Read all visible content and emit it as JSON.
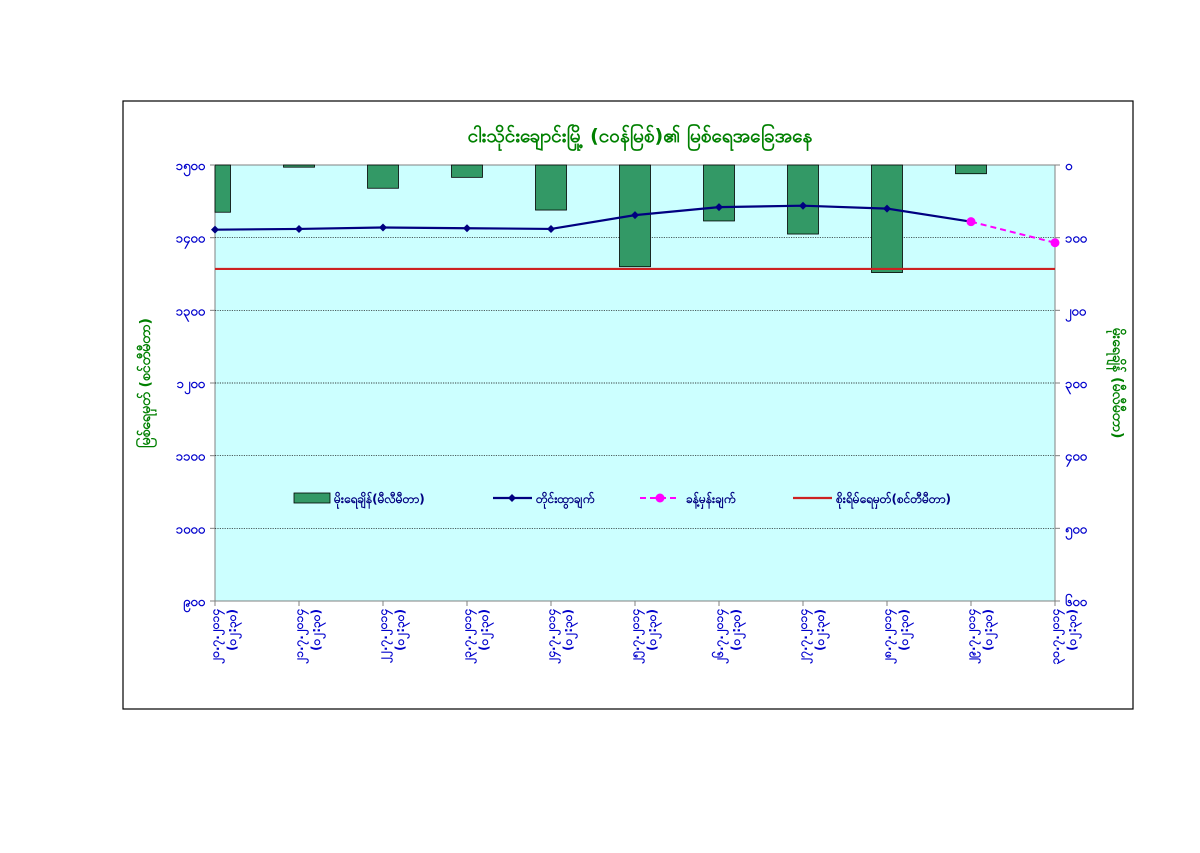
{
  "chart_data": {
    "type": "bar+line",
    "title": "ငါးသိုင်းချောင်းမြို့ (ငဝန်မြစ်)၏ မြစ်ရေအခြေအနေ",
    "ylabel_left": "မြစ်ရေမှတ် (စင်တီမီတာ)",
    "ylabel_right": "မိုးရေချိန် (မီလီမီတာ)",
    "left_axis": {
      "min": 900,
      "max": 1500,
      "step": 100,
      "tick_labels": [
        "၉၀၀",
        "၁၀၀၀",
        "၁၁၀၀",
        "၁၂၀၀",
        "၁၃၀၀",
        "၁၄၀၀",
        "၁၅၀၀"
      ]
    },
    "right_axis": {
      "min": 0,
      "max": 600,
      "step": 100,
      "inverted": true,
      "tick_labels": [
        "၀",
        "၁၀၀",
        "၂၀၀",
        "၃၀၀",
        "၄၀၀",
        "၅၀၀",
        "၆၀၀"
      ]
    },
    "categories": [
      {
        "date": "၂၀.၇.၂၀၁၄",
        "time": "(၀၂:၃၀)"
      },
      {
        "date": "၂၁.၇.၂၀၁၄",
        "time": "(၀၂:၃၀)"
      },
      {
        "date": "၂၂.၇.၂၀၁၄",
        "time": "(၀၂:၃၀)"
      },
      {
        "date": "၂၃.၇.၂၀၁၄",
        "time": "(၀၂:၃၀)"
      },
      {
        "date": "၂၄.၇.၂၀၁၄",
        "time": "(၀၂:၃၀)"
      },
      {
        "date": "၂၅.၇.၂၀၁၄",
        "time": "(၀၂:၃၀)"
      },
      {
        "date": "၂၆.၇.၂၀၁၄",
        "time": "(၀၂:၃၀)"
      },
      {
        "date": "၂၇.၇.၂၀၁၄",
        "time": "(၀၂:၃၀)"
      },
      {
        "date": "၂၈.၇.၂၀၁၄",
        "time": "(၀၂:၃၀)"
      },
      {
        "date": "၂၉.၇.၂၀၁၄",
        "time": "(၀၂:၃၀)"
      },
      {
        "date": "၃၀.၇.၂၀၁၄",
        "time": "(၀၂:၃၀)"
      }
    ],
    "series": [
      {
        "name": "မိုးရေချိန်(မီလီမီတာ)",
        "type": "bar",
        "axis": "right",
        "values": [
          65,
          3,
          32,
          17,
          62,
          140,
          77,
          95,
          148,
          12,
          null
        ]
      },
      {
        "name": "တိုင်းထွာချက်",
        "type": "line",
        "axis": "left",
        "values": [
          1411,
          1412,
          1414,
          1413,
          1412,
          1431,
          1442,
          1444,
          1440,
          1422,
          null
        ]
      },
      {
        "name": "ခန့်မှန်းချက်",
        "type": "line-dashed",
        "axis": "left",
        "values": [
          null,
          null,
          null,
          null,
          null,
          null,
          null,
          null,
          null,
          1422,
          1393
        ]
      },
      {
        "name": "စိုးရိမ်ရေမှတ်(စင်တီမီတာ)",
        "type": "hline",
        "axis": "left",
        "value": 1357
      }
    ],
    "legend_position": "inside-center",
    "grid": true,
    "colors": {
      "bar_fill": "#339966",
      "bar_stroke": "#000000",
      "measured": "#000080",
      "forecast": "#ff00ff",
      "danger": "#cc2222",
      "plot_bg": "#ccffff",
      "title": "#008000",
      "tick": "#0000cc",
      "frame": "#000000"
    }
  }
}
